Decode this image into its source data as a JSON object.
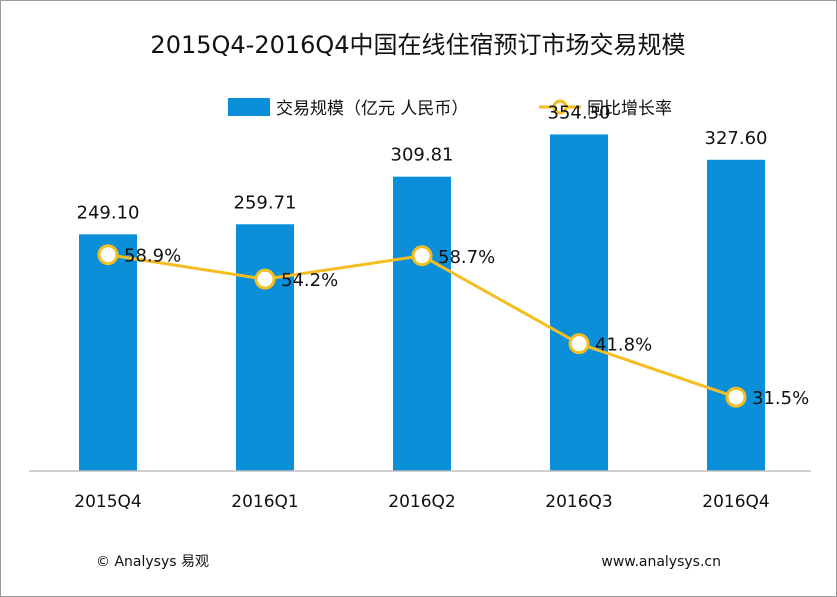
{
  "colors": {
    "bar": "#0b8fd9",
    "line": "#f5bd1f",
    "marker_fill": "#ffffff",
    "axis": "#bfbfbf"
  },
  "chart_data": {
    "type": "bar",
    "title": "2015Q4-2016Q4中国在线住宿预订市场交易规模",
    "categories": [
      "2015Q4",
      "2016Q1",
      "2016Q2",
      "2016Q3",
      "2016Q4"
    ],
    "series": [
      {
        "name": "交易规模（亿元 人民币）",
        "type": "bar",
        "values": [
          249.1,
          259.71,
          309.81,
          354.3,
          327.6
        ],
        "labels": [
          "249.10",
          "259.71",
          "309.81",
          "354.30",
          "327.60"
        ]
      },
      {
        "name": "同比增长率",
        "type": "line",
        "values": [
          58.9,
          54.2,
          58.7,
          41.8,
          31.5
        ],
        "labels": [
          "58.9%",
          "54.2%",
          "58.7%",
          "41.8%",
          "31.5%"
        ]
      }
    ],
    "bar_ylim": [
      0,
      400
    ],
    "line_ylim": [
      0,
      100
    ],
    "legend_position": "top-center",
    "grid": false
  },
  "footer": {
    "left": "© Analysys 易观",
    "right": "www.analysys.cn"
  }
}
